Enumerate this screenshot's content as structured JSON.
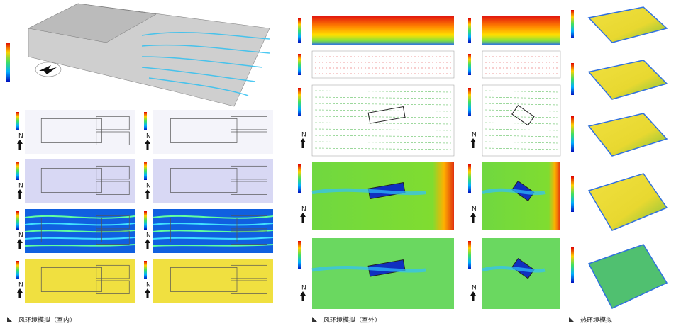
{
  "captions": {
    "indoor": "风环境模拟（室内）",
    "outdoor": "风环境模拟（室外）",
    "thermal": "热环境模拟"
  },
  "north": "N"
}
